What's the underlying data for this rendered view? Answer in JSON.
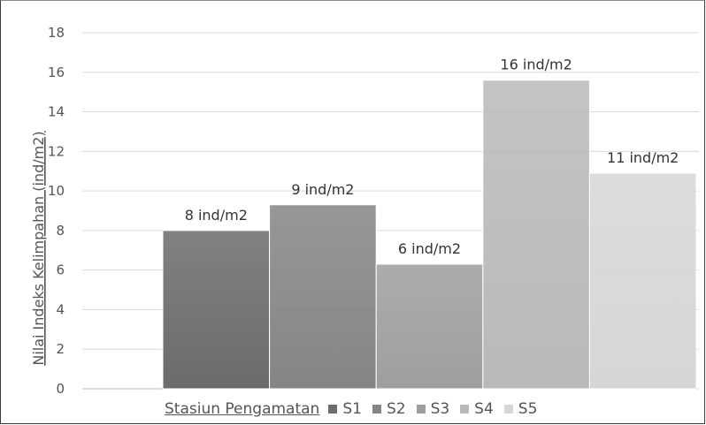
{
  "chart_data": {
    "type": "bar",
    "xlabel": "Stasiun Pengamatan",
    "ylabel": "Nilai Indeks Kelimpahan (ind/m2)",
    "ylim": [
      0,
      18
    ],
    "yticks": [
      0,
      2,
      4,
      6,
      8,
      10,
      12,
      14,
      16,
      18
    ],
    "grid": true,
    "legend_position": "bottom",
    "series": [
      {
        "name": "S1",
        "value": 8.0,
        "label": "8 ind/m2",
        "color": "#6b6b6b"
      },
      {
        "name": "S2",
        "value": 9.3,
        "label": "9 ind/m2",
        "color": "#858585"
      },
      {
        "name": "S3",
        "value": 6.3,
        "label": "6 ind/m2",
        "color": "#9e9e9e"
      },
      {
        "name": "S4",
        "value": 15.6,
        "label": "16 ind/m2",
        "color": "#b9b9b9"
      },
      {
        "name": "S5",
        "value": 10.9,
        "label": "11 ind/m2",
        "color": "#d6d6d6"
      }
    ]
  }
}
